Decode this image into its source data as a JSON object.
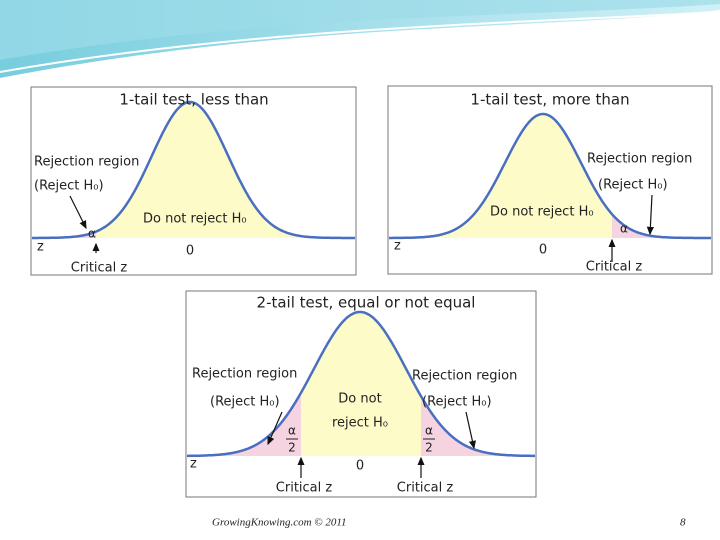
{
  "panels": [
    {
      "title": "1-tail test, less than",
      "rejection_label": "Rejection region",
      "reject_note": "(Reject H₀)",
      "accept_label": "Do not reject H₀",
      "alpha": "α",
      "axis_label": "z",
      "center_label": "0",
      "critical_label": "Critical z"
    },
    {
      "title": "1-tail test, more than",
      "rejection_label": "Rejection region",
      "reject_note": "(Reject H₀)",
      "accept_label": "Do not reject H₀",
      "alpha": "α",
      "axis_label": "z",
      "center_label": "0",
      "critical_label": "Critical z"
    },
    {
      "title": "2-tail test, equal or not equal",
      "rejection_labels": [
        "Rejection region",
        "Rejection region"
      ],
      "reject_notes": [
        "(Reject H₀)",
        "(Reject H₀)"
      ],
      "accept_label_lines": [
        "Do not",
        "reject H₀"
      ],
      "alpha_fractions": [
        {
          "numerator": "α",
          "denominator": "2"
        },
        {
          "numerator": "α",
          "denominator": "2"
        }
      ],
      "axis_label": "z",
      "center_label": "0",
      "critical_labels": [
        "Critical z",
        "Critical z"
      ]
    }
  ],
  "footer": {
    "source": "GrowingKnowing.com © 2011",
    "page": "8"
  }
}
